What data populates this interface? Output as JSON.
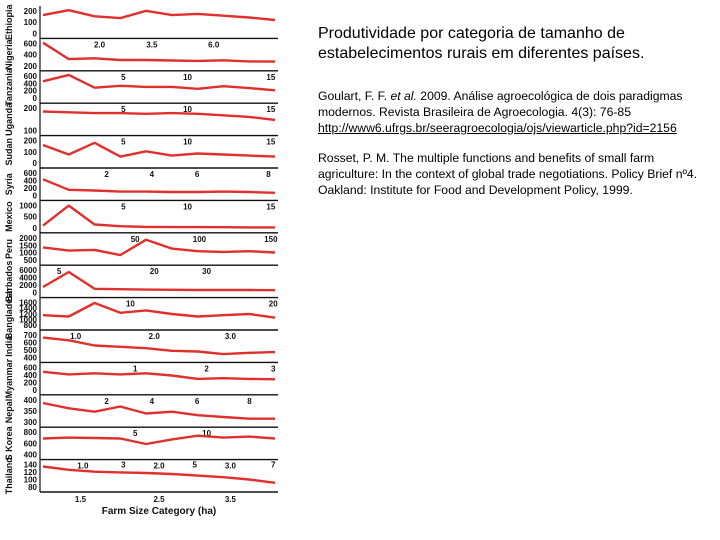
{
  "panel": {
    "title": "Produtividade por categoria de tamanho de estabelecimentos rurais em diferentes países.",
    "ref1_pre": "Goulart, F. F. ",
    "ref1_em": "et al.",
    "ref1_post": " 2009. Análise agroecológica de dois paradigmas modernos. Revista Brasileira de Agroecologia. 4(3): 76-85",
    "ref1_link": "http://www6.ufrgs.br/seeragroecologia/ojs/viewarticle.php?id=2156",
    "ref2": "Rosset, P. M. The multiple functions and benefits of small farm agriculture: In the context of global trade negotiations. Policy Brief nº4. Oakland: Institute for Food and Development Policy, 1999."
  },
  "chart_data": {
    "type": "line",
    "line_color": "#e0302c",
    "xlabel": "Farm Size Category (ha)",
    "panels": [
      {
        "country": "Ethiopia",
        "yticks": [
          "200",
          "100",
          "0"
        ],
        "ylim": [
          0,
          200
        ],
        "y": [
          150,
          190,
          140,
          125,
          185,
          150,
          160,
          145,
          130,
          110
        ],
        "xticks": [
          {
            "label": "2.0",
            "pos": 0.25
          },
          {
            "label": "3.5",
            "pos": 0.47
          },
          {
            "label": "6.0",
            "pos": 0.73
          }
        ]
      },
      {
        "country": "Nigeria",
        "yticks": [
          "600",
          "400",
          "200"
        ],
        "ylim": [
          100,
          650
        ],
        "y": [
          620,
          250,
          270,
          230,
          230,
          220,
          210,
          225,
          200,
          195
        ],
        "xticks": [
          {
            "label": "5",
            "pos": 0.35
          },
          {
            "label": "10",
            "pos": 0.62
          },
          {
            "label": "15",
            "pos": 0.97
          }
        ]
      },
      {
        "country": "Tanzania",
        "yticks": [
          "600",
          "400",
          "200",
          "0"
        ],
        "ylim": [
          0,
          650
        ],
        "y": [
          450,
          620,
          280,
          330,
          300,
          300,
          250,
          320,
          270,
          210
        ],
        "xticks": [
          {
            "label": "5",
            "pos": 0.35
          },
          {
            "label": "10",
            "pos": 0.62
          },
          {
            "label": "15",
            "pos": 0.97
          }
        ]
      },
      {
        "country": "Uganda",
        "yticks": [
          "200",
          "100"
        ],
        "ylim": [
          70,
          230
        ],
        "y": [
          195,
          190,
          185,
          185,
          180,
          185,
          180,
          170,
          160,
          140
        ],
        "xticks": [
          {
            "label": "5",
            "pos": 0.35
          },
          {
            "label": "10",
            "pos": 0.62
          },
          {
            "label": "15",
            "pos": 0.97
          }
        ]
      },
      {
        "country": "Sudan",
        "yticks": [
          "200",
          "100",
          "0"
        ],
        "ylim": [
          0,
          230
        ],
        "y": [
          170,
          80,
          190,
          60,
          110,
          70,
          90,
          80,
          70,
          60
        ],
        "xticks": [
          {
            "label": "2",
            "pos": 0.28
          },
          {
            "label": "4",
            "pos": 0.47
          },
          {
            "label": "6",
            "pos": 0.66
          },
          {
            "label": "8",
            "pos": 0.96
          }
        ]
      },
      {
        "country": "Syria",
        "yticks": [
          "600",
          "400",
          "200",
          "0"
        ],
        "ylim": [
          0,
          650
        ],
        "y": [
          430,
          150,
          130,
          100,
          100,
          90,
          90,
          100,
          90,
          70
        ],
        "xticks": [
          {
            "label": "5",
            "pos": 0.35
          },
          {
            "label": "10",
            "pos": 0.62
          },
          {
            "label": "15",
            "pos": 0.97
          }
        ]
      },
      {
        "country": "Mexico",
        "yticks": [
          "1000",
          "500",
          "0"
        ],
        "ylim": [
          0,
          1100
        ],
        "y": [
          100,
          1000,
          150,
          70,
          40,
          30,
          30,
          25,
          20,
          20
        ],
        "xticks": [
          {
            "label": "50",
            "pos": 0.4
          },
          {
            "label": "100",
            "pos": 0.67
          },
          {
            "label": "150",
            "pos": 0.97
          }
        ]
      },
      {
        "country": "Peru",
        "yticks": [
          "2000",
          "1500",
          "1000",
          "500"
        ],
        "ylim": [
          300,
          2200
        ],
        "y": [
          1300,
          1050,
          1100,
          700,
          1900,
          1200,
          1000,
          950,
          1000,
          900
        ],
        "xticks": [
          {
            "label": "5",
            "pos": 0.08
          },
          {
            "label": "20",
            "pos": 0.48
          },
          {
            "label": "30",
            "pos": 0.7
          }
        ]
      },
      {
        "country": "Barbados",
        "yticks": [
          "6000",
          "4000",
          "2000",
          "0"
        ],
        "ylim": [
          0,
          6500
        ],
        "y": [
          1500,
          5500,
          1000,
          900,
          800,
          750,
          700,
          700,
          700,
          650
        ],
        "xticks": [
          {
            "label": "10",
            "pos": 0.38
          },
          {
            "label": "20",
            "pos": 0.98
          }
        ]
      },
      {
        "country": "Bangladesh",
        "yticks": [
          "1600",
          "1400",
          "1200",
          "1000",
          "800"
        ],
        "ylim": [
          700,
          1700
        ],
        "y": [
          1100,
          1050,
          1600,
          1200,
          1300,
          1150,
          1050,
          1100,
          1150,
          1000
        ],
        "xticks": [
          {
            "label": "1.0",
            "pos": 0.15
          },
          {
            "label": "2.0",
            "pos": 0.48
          },
          {
            "label": "3.0",
            "pos": 0.8
          }
        ]
      },
      {
        "country": "India",
        "yticks": [
          "700",
          "600",
          "500",
          "400"
        ],
        "ylim": [
          380,
          750
        ],
        "y": [
          680,
          640,
          560,
          540,
          520,
          480,
          470,
          430,
          450,
          460
        ],
        "xticks": [
          {
            "label": "1",
            "pos": 0.4
          },
          {
            "label": "2",
            "pos": 0.7
          },
          {
            "label": "3",
            "pos": 0.98
          }
        ]
      },
      {
        "country": "Myanmar",
        "yticks": [
          "600",
          "400",
          "200",
          "0"
        ],
        "ylim": [
          0,
          650
        ],
        "y": [
          480,
          410,
          440,
          410,
          440,
          380,
          290,
          310,
          290,
          280
        ],
        "xticks": [
          {
            "label": "2",
            "pos": 0.28
          },
          {
            "label": "4",
            "pos": 0.47
          },
          {
            "label": "6",
            "pos": 0.66
          },
          {
            "label": "8",
            "pos": 0.88
          }
        ]
      },
      {
        "country": "Nepal",
        "yticks": [
          "400",
          "350",
          "300"
        ],
        "ylim": [
          280,
          420
        ],
        "y": [
          390,
          360,
          340,
          370,
          330,
          340,
          320,
          310,
          300,
          300
        ],
        "xticks": [
          {
            "label": "5",
            "pos": 0.4
          },
          {
            "label": "10",
            "pos": 0.7
          }
        ]
      },
      {
        "country": "S Korea",
        "yticks": [
          "800",
          "600",
          "400"
        ],
        "ylim": [
          350,
          880
        ],
        "y": [
          700,
          720,
          710,
          700,
          580,
          680,
          760,
          720,
          740,
          700
        ],
        "xticks": [
          {
            "label": "1.0",
            "pos": 0.18
          },
          {
            "label": "2.0",
            "pos": 0.5
          },
          {
            "label": "3.0",
            "pos": 0.8
          }
        ]
      },
      {
        "country": "Thailand",
        "yticks": [
          "140",
          "120",
          "100",
          "80"
        ],
        "ylim": [
          75,
          150
        ],
        "y": [
          138,
          128,
          122,
          120,
          118,
          115,
          110,
          105,
          98,
          88
        ],
        "xticks": [
          {
            "label": "3",
            "pos": 0.35
          },
          {
            "label": "5",
            "pos": 0.65
          },
          {
            "label": "7",
            "pos": 0.98
          }
        ]
      }
    ],
    "bottom_xticks": [
      {
        "label": "1.5",
        "pos": 0.17
      },
      {
        "label": "2.5",
        "pos": 0.5
      },
      {
        "label": "3.5",
        "pos": 0.8
      }
    ]
  }
}
